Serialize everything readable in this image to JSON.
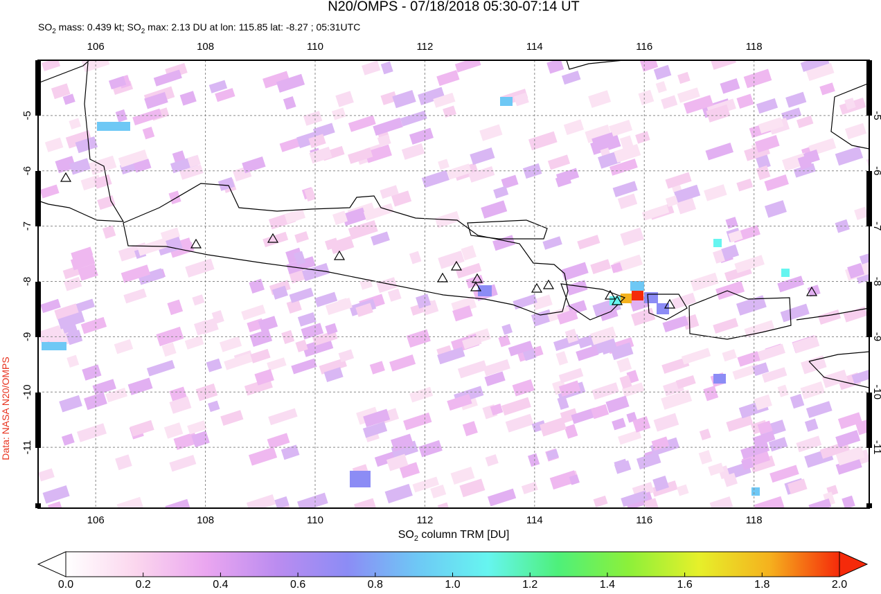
{
  "chart_data": {
    "type": "map",
    "title": "N20/OMPS - 07/18/2018 05:30-07:14 UT",
    "subtitle": [
      "SO",
      "2",
      " mass: 0.439 kt; SO",
      "2",
      " max: 2.13 DU at lon: 115.85 lat: -8.27 ; 05:31UTC"
    ],
    "xlim": [
      104.95,
      120.1
    ],
    "ylim": [
      -12.1,
      -4
    ],
    "xticks": [
      106,
      108,
      110,
      112,
      114,
      116,
      118
    ],
    "yticks": [
      -5,
      -6,
      -7,
      -8,
      -9,
      -10,
      -11
    ],
    "grid": true,
    "colorbar": {
      "label": [
        "SO",
        "2",
        " column TRM [DU]"
      ],
      "lim": [
        0,
        2
      ],
      "ticks": [
        {
          "value": 0,
          "label": "0.0"
        },
        0.2,
        0.4,
        0.6,
        0.8,
        {
          "value": 1,
          "label": "1.0"
        },
        1.2,
        1.4,
        1.6,
        1.8,
        {
          "value": 2,
          "label": "2.0"
        }
      ],
      "colors": [
        "#ffffff",
        "#fbd6ee",
        "#eaa6f0",
        "#bb8cf0",
        "#8c8cf5",
        "#6ec8f5",
        "#66f5f0",
        "#4ef07a",
        "#8cf03a",
        "#e6f02a",
        "#f5b21e",
        "#f52a0a"
      ]
    },
    "credit": "Data: NASA N20/OMPS"
  }
}
